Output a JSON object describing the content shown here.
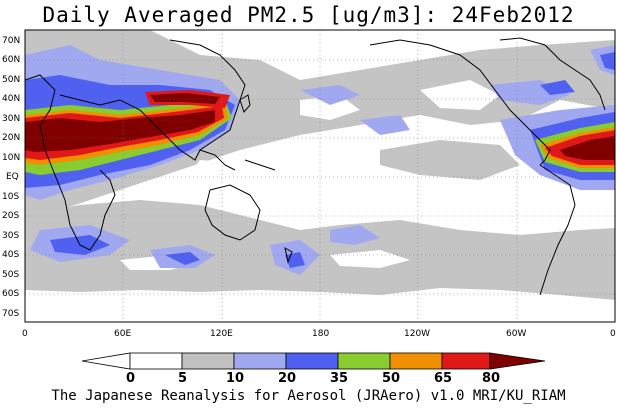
{
  "title": "Daily Averaged PM2.5 [ug/m3]: 24Feb2012",
  "footer": "The Japanese Reanalysis for Aerosol (JRAero) v1.0 MRI/KU_RIAM",
  "lat_labels": [
    "70N",
    "60N",
    "50N",
    "40N",
    "30N",
    "20N",
    "10N",
    "EQ",
    "10S",
    "20S",
    "30S",
    "40S",
    "50S",
    "60S",
    "70S"
  ],
  "lon_labels": [
    "0",
    "60E",
    "120E",
    "180",
    "120W",
    "60W",
    "0"
  ],
  "colorbar": {
    "ticks": [
      "0",
      "5",
      "10",
      "20",
      "35",
      "50",
      "65",
      "80"
    ],
    "colors": [
      "#ffffff",
      "#ffffff",
      "#c0c0c0",
      "#a0a8f0",
      "#5060f0",
      "#88cc30",
      "#f09000",
      "#e01818",
      "#800000"
    ]
  }
}
